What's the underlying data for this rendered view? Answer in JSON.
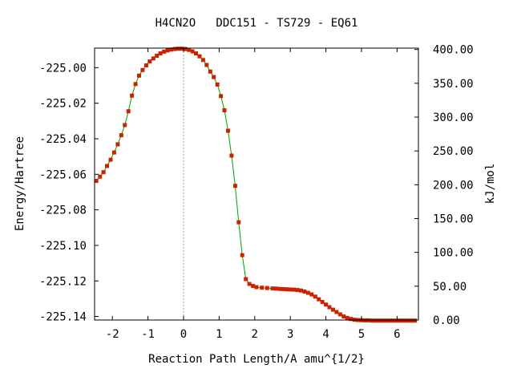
{
  "chart_data": {
    "type": "line",
    "title": "H4CN2O   DDC151 - TS729 - EQ61",
    "xlabel": "Reaction Path Length/A amu^{1/2}",
    "ylabel": "Energy/Hartree",
    "y2label": "kJ/mol",
    "xlim": [
      -2.5,
      6.6
    ],
    "ylim": [
      -225.142,
      -224.989
    ],
    "y2lim": [
      0,
      402
    ],
    "xticks": [
      -2,
      -1,
      0,
      1,
      2,
      3,
      4,
      5,
      6
    ],
    "xtick_labels": [
      "-2",
      "-1",
      "0",
      "1",
      "2",
      "3",
      "4",
      "5",
      "6"
    ],
    "yticks": [
      -225.0,
      -225.02,
      -225.04,
      -225.06,
      -225.08,
      -225.1,
      -225.12,
      -225.14
    ],
    "ytick_labels": [
      "-225.00",
      "-225.02",
      "-225.04",
      "-225.06",
      "-225.08",
      "-225.10",
      "-225.12",
      "-225.14"
    ],
    "y2ticks": [
      0,
      50,
      100,
      150,
      200,
      250,
      300,
      350,
      400
    ],
    "y2tick_labels": [
      "0.00",
      "50.00",
      "100.00",
      "150.00",
      "200.00",
      "250.00",
      "300.00",
      "350.00",
      "400.00"
    ],
    "ts_marker_x": 0,
    "grid": false,
    "colors": {
      "line": "#00a000",
      "marker": "#cc2200",
      "ts_line": "#999999",
      "axes": "#000000"
    },
    "series": [
      {
        "points": [
          [
            -2.45,
            -225.0637
          ],
          [
            -2.35,
            -225.0613
          ],
          [
            -2.25,
            -225.0588
          ],
          [
            -2.15,
            -225.0553
          ],
          [
            -2.05,
            -225.0518
          ],
          [
            -1.95,
            -225.0477
          ],
          [
            -1.85,
            -225.0431
          ],
          [
            -1.75,
            -225.038
          ],
          [
            -1.65,
            -225.0323
          ],
          [
            -1.55,
            -225.0245
          ],
          [
            -1.45,
            -225.0157
          ],
          [
            -1.35,
            -225.0092
          ],
          [
            -1.25,
            -225.0045
          ],
          [
            -1.15,
            -225.0013
          ],
          [
            -1.05,
            -224.9987
          ],
          [
            -0.95,
            -224.9965
          ],
          [
            -0.85,
            -224.9948
          ],
          [
            -0.75,
            -224.9933
          ],
          [
            -0.65,
            -224.992
          ],
          [
            -0.55,
            -224.991
          ],
          [
            -0.45,
            -224.9903
          ],
          [
            -0.35,
            -224.9898
          ],
          [
            -0.25,
            -224.9895
          ],
          [
            -0.15,
            -224.9893
          ],
          [
            -0.05,
            -224.9893
          ],
          [
            0.05,
            -224.9895
          ],
          [
            0.15,
            -224.99
          ],
          [
            0.25,
            -224.9908
          ],
          [
            0.35,
            -224.992
          ],
          [
            0.45,
            -224.9936
          ],
          [
            0.55,
            -224.9957
          ],
          [
            0.65,
            -224.9985
          ],
          [
            0.75,
            -225.0022
          ],
          [
            0.85,
            -225.0053
          ],
          [
            0.95,
            -225.0095
          ],
          [
            1.05,
            -225.016
          ],
          [
            1.15,
            -225.024
          ],
          [
            1.25,
            -225.0355
          ],
          [
            1.35,
            -225.0495
          ],
          [
            1.45,
            -225.0665
          ],
          [
            1.55,
            -225.087
          ],
          [
            1.65,
            -225.1055
          ],
          [
            1.75,
            -225.119
          ],
          [
            1.85,
            -225.1217
          ],
          [
            1.95,
            -225.1228
          ],
          [
            2.05,
            -225.1235
          ],
          [
            2.2,
            -225.1238
          ],
          [
            2.35,
            -225.124
          ],
          [
            2.5,
            -225.1242
          ],
          [
            2.6,
            -225.1243
          ],
          [
            2.7,
            -225.1245
          ],
          [
            2.8,
            -225.1246
          ],
          [
            2.9,
            -225.1247
          ],
          [
            3.0,
            -225.1248
          ],
          [
            3.1,
            -225.1249
          ],
          [
            3.2,
            -225.1251
          ],
          [
            3.3,
            -225.1254
          ],
          [
            3.4,
            -225.126
          ],
          [
            3.5,
            -225.1267
          ],
          [
            3.6,
            -225.1276
          ],
          [
            3.7,
            -225.1288
          ],
          [
            3.8,
            -225.1303
          ],
          [
            3.9,
            -225.1318
          ],
          [
            4.0,
            -225.1333
          ],
          [
            4.1,
            -225.1348
          ],
          [
            4.2,
            -225.1362
          ],
          [
            4.3,
            -225.1375
          ],
          [
            4.4,
            -225.1388
          ],
          [
            4.5,
            -225.14
          ],
          [
            4.6,
            -225.1408
          ],
          [
            4.7,
            -225.1414
          ],
          [
            4.8,
            -225.1418
          ],
          [
            4.9,
            -225.142
          ],
          [
            5.0,
            -225.1421
          ],
          [
            5.1,
            -225.1422
          ],
          [
            5.2,
            -225.1422
          ],
          [
            5.3,
            -225.1423
          ],
          [
            5.4,
            -225.1423
          ],
          [
            5.5,
            -225.1423
          ],
          [
            5.6,
            -225.1423
          ],
          [
            5.7,
            -225.1423
          ],
          [
            5.8,
            -225.1423
          ],
          [
            5.9,
            -225.1423
          ],
          [
            6.0,
            -225.1423
          ],
          [
            6.1,
            -225.1423
          ],
          [
            6.2,
            -225.1423
          ],
          [
            6.3,
            -225.1423
          ],
          [
            6.4,
            -225.1423
          ],
          [
            6.5,
            -225.1423
          ]
        ]
      }
    ]
  }
}
